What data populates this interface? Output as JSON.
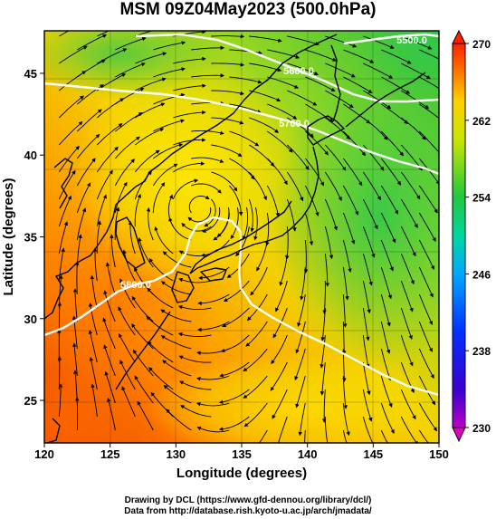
{
  "title": "MSM 09Z04May2023 (500.0hPa)",
  "chart_data": {
    "type": "map",
    "projection": "equirectangular",
    "field": "temperature shading with streamlines and geopotential height contours",
    "xlabel": "Longitude (degrees)",
    "ylabel": "Latitude  (degrees)",
    "xlim": [
      120,
      150
    ],
    "ylim": [
      22.4,
      47.6
    ],
    "xticks": [
      "120",
      "125",
      "130",
      "135",
      "140",
      "145",
      "150"
    ],
    "yticks": [
      "25",
      "30",
      "35",
      "40",
      "45"
    ],
    "colorbar": {
      "range": [
        230,
        270
      ],
      "tick_labels": [
        "270",
        "262",
        "254",
        "246",
        "238",
        "230"
      ],
      "extend": "both"
    },
    "contours": [
      {
        "label": "5500.0",
        "lon_at_label": 141
      },
      {
        "label": "5600.0",
        "lon_at_label": 135
      },
      {
        "label": "5700.0",
        "lon_at_label": 135
      },
      {
        "label": "5800.0",
        "lon_at_label": 126
      }
    ],
    "cutoff_low_center": {
      "lon": 131.8,
      "lat": 36.8
    }
  },
  "credits": {
    "line1": "Drawing by DCL (https://www.gfd-dennou.org/library/dcl/)",
    "line2": "Data from http://database.rish.kyoto-u.ac.jp/arch/jmadata/"
  },
  "colors": {
    "warm": "#ff6a00",
    "mid": "#ffd400",
    "cool": "#22c445",
    "cold": "#0a2cd8",
    "coldest": "#d000d0"
  }
}
